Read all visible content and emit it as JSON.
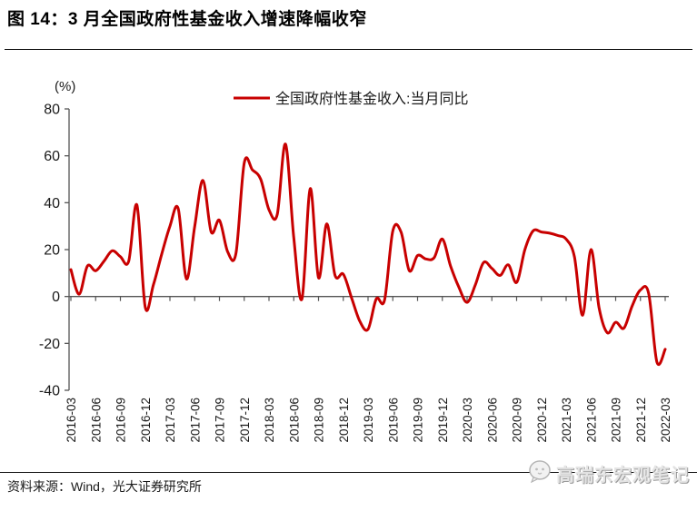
{
  "header": {
    "title": "图 14：3 月全国政府性基金收入增速降幅收窄"
  },
  "chart_data": {
    "type": "line",
    "title": "",
    "unit_label": "(%)",
    "legend": [
      "全国政府性基金收入:当月同比"
    ],
    "legend_position": "top-center",
    "grid": false,
    "line_color": "#c80000",
    "axis_color": "#555555",
    "label_color": "#1a1a1a",
    "ylim": [
      -40,
      80
    ],
    "yticks": [
      80,
      60,
      40,
      20,
      0,
      -20,
      -40
    ],
    "xtick_labels": [
      "2016-03",
      "2016-06",
      "2016-09",
      "2016-12",
      "2017-03",
      "2017-06",
      "2017-09",
      "2017-12",
      "2018-03",
      "2018-06",
      "2018-09",
      "2018-12",
      "2019-03",
      "2019-06",
      "2019-09",
      "2019-12",
      "2020-03",
      "2020-06",
      "2020-09",
      "2020-12",
      "2021-03",
      "2021-06",
      "2021-09",
      "2021-12",
      "2022-03"
    ],
    "x": [
      "2016-03",
      "2016-04",
      "2016-05",
      "2016-06",
      "2016-07",
      "2016-08",
      "2016-09",
      "2016-10",
      "2016-11",
      "2016-12",
      "2017-01",
      "2017-02",
      "2017-03",
      "2017-04",
      "2017-05",
      "2017-06",
      "2017-07",
      "2017-08",
      "2017-09",
      "2017-10",
      "2017-11",
      "2017-12",
      "2018-01",
      "2018-02",
      "2018-03",
      "2018-04",
      "2018-05",
      "2018-06",
      "2018-07",
      "2018-08",
      "2018-09",
      "2018-10",
      "2018-11",
      "2018-12",
      "2019-01",
      "2019-02",
      "2019-03",
      "2019-04",
      "2019-05",
      "2019-06",
      "2019-07",
      "2019-08",
      "2019-09",
      "2019-10",
      "2019-11",
      "2019-12",
      "2020-01",
      "2020-02",
      "2020-03",
      "2020-04",
      "2020-05",
      "2020-06",
      "2020-07",
      "2020-08",
      "2020-09",
      "2020-10",
      "2020-11",
      "2020-12",
      "2021-01",
      "2021-02",
      "2021-03",
      "2021-04",
      "2021-05",
      "2021-06",
      "2021-07",
      "2021-08",
      "2021-09",
      "2021-10",
      "2021-11",
      "2021-12",
      "2022-01",
      "2022-02",
      "2022-03"
    ],
    "series": [
      {
        "name": "全国政府性基金收入:当月同比",
        "values": [
          11.5,
          1,
          13,
          11,
          15,
          19.5,
          17,
          15,
          39,
          -4.5,
          5,
          18,
          30,
          37.5,
          7.5,
          30,
          49.5,
          27.5,
          32.5,
          19,
          18.5,
          57,
          54,
          50,
          37,
          35,
          65,
          25,
          -1,
          46,
          8,
          31,
          9,
          9.5,
          -0.5,
          -10.5,
          -14,
          -1,
          -1.5,
          28,
          27.5,
          11,
          17.5,
          16,
          16.5,
          24.5,
          13,
          4,
          -2.5,
          5,
          14.5,
          12,
          9,
          13.5,
          6,
          20,
          28,
          27.5,
          27,
          26,
          24.5,
          17,
          -8,
          20,
          -5,
          -15.5,
          -11,
          -13.5,
          -4,
          2.8,
          1.3,
          -28,
          -22.5
        ]
      }
    ]
  },
  "footer": {
    "source": "资料来源：Wind，光大证券研究所",
    "watermark": "高瑞东宏观笔记"
  }
}
